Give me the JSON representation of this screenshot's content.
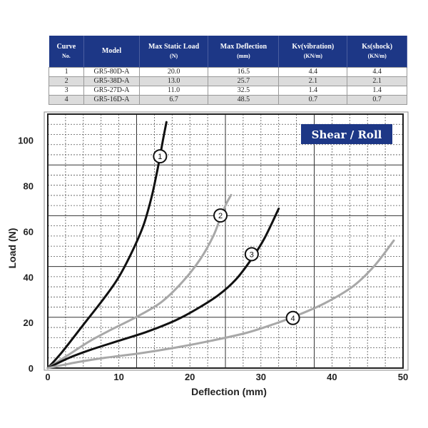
{
  "table": {
    "headers": [
      {
        "line1": "Curve",
        "line2": "No."
      },
      {
        "line1": "Model",
        "line2": ""
      },
      {
        "line1": "Max Static Load",
        "line2": "(N)"
      },
      {
        "line1": "Max Deflection",
        "line2": "(mm)"
      },
      {
        "line1": "Kv(vibration)",
        "line2": "(KN/m)"
      },
      {
        "line1": "Ks(shock)",
        "line2": "(KN/m)"
      }
    ],
    "rows": [
      [
        "1",
        "GR5-80D-A",
        "20.0",
        "16.5",
        "4.4",
        "4.4"
      ],
      [
        "2",
        "GR5-38D-A",
        "13.0",
        "25.7",
        "2.1",
        "2.1"
      ],
      [
        "3",
        "GR5-27D-A",
        "11.0",
        "32.5",
        "1.4",
        "1.4"
      ],
      [
        "4",
        "GR5-16D-A",
        "6.7",
        "48.5",
        "0.7",
        "0.7"
      ]
    ]
  },
  "chart_data": {
    "type": "line",
    "title": "Shear / Roll",
    "xlabel": "Deflection (mm)",
    "ylabel": "Load (N)",
    "xlim": [
      0,
      50
    ],
    "ylim": [
      0,
      111.5
    ],
    "xticks": [
      0,
      10,
      20,
      30,
      40,
      50
    ],
    "yticks": [
      0,
      20,
      40,
      60,
      80,
      100
    ],
    "grid": true,
    "colors": {
      "dark": "#111111",
      "light": "#a8a8a8",
      "badge": "#1d3786"
    },
    "series": [
      {
        "name": "1",
        "color": "dark",
        "label_at": [
          15.8,
          93
        ],
        "points": [
          [
            0,
            0
          ],
          [
            2,
            7
          ],
          [
            5,
            19
          ],
          [
            8,
            31
          ],
          [
            10,
            40
          ],
          [
            12,
            52
          ],
          [
            13.5,
            63
          ],
          [
            14.6,
            75
          ],
          [
            15.3,
            85
          ],
          [
            15.8,
            93
          ],
          [
            16.2,
            100
          ],
          [
            16.7,
            108
          ]
        ]
      },
      {
        "name": "2",
        "color": "light",
        "label_at": [
          24.3,
          67
        ],
        "points": [
          [
            0,
            0
          ],
          [
            3,
            6
          ],
          [
            6,
            12
          ],
          [
            9,
            17
          ],
          [
            12.5,
            22.5
          ],
          [
            16,
            29
          ],
          [
            19,
            38
          ],
          [
            21.5,
            48
          ],
          [
            23.3,
            58
          ],
          [
            24.3,
            66
          ],
          [
            25.1,
            72
          ],
          [
            25.8,
            76
          ]
        ]
      },
      {
        "name": "3",
        "color": "dark",
        "label_at": [
          28.7,
          50
        ],
        "points": [
          [
            0,
            0
          ],
          [
            3,
            4.5
          ],
          [
            6,
            8
          ],
          [
            10,
            12
          ],
          [
            14,
            16
          ],
          [
            18,
            21
          ],
          [
            21,
            26
          ],
          [
            24,
            32
          ],
          [
            26.5,
            39
          ],
          [
            28.7,
            48
          ],
          [
            30.5,
            57
          ],
          [
            32.5,
            70
          ]
        ]
      },
      {
        "name": "4",
        "color": "light",
        "label_at": [
          34.5,
          22
        ],
        "points": [
          [
            0,
            0
          ],
          [
            4,
            2.5
          ],
          [
            8,
            4.5
          ],
          [
            13,
            6.5
          ],
          [
            18,
            9
          ],
          [
            23,
            12
          ],
          [
            28,
            15.5
          ],
          [
            32,
            19.5
          ],
          [
            35,
            23
          ],
          [
            39,
            28.5
          ],
          [
            43,
            36
          ],
          [
            46,
            45
          ],
          [
            48.7,
            56
          ]
        ]
      }
    ]
  }
}
